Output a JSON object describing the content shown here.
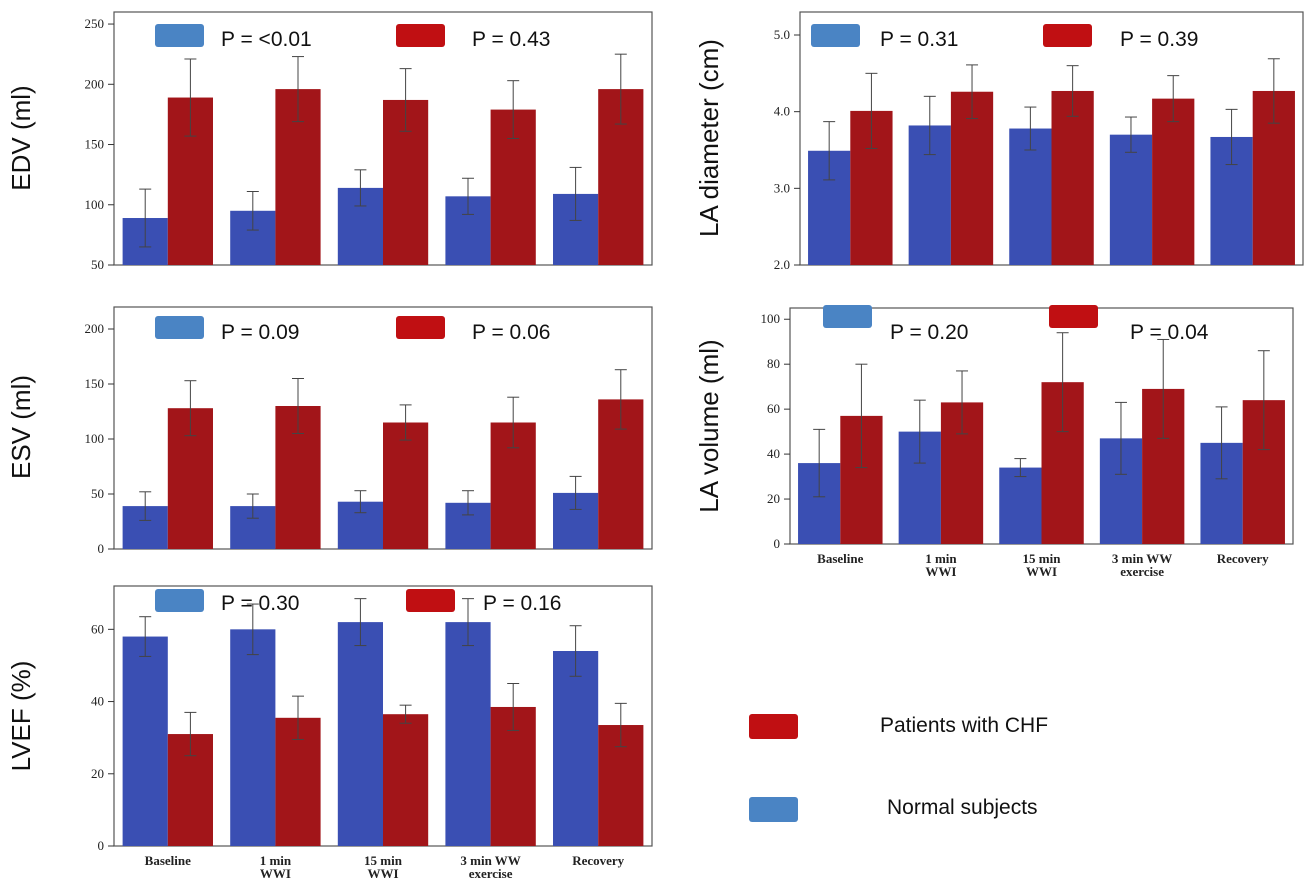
{
  "colors": {
    "normal_bar": "#3a4fb3",
    "chf_bar": "#a21519",
    "normal_swatch": "#4a84c4",
    "chf_swatch": "#c00f12"
  },
  "legend": {
    "chf_label": "Patients with CHF",
    "normal_label": "Normal subjects"
  },
  "chart_data": [
    {
      "type": "bar",
      "ylabel": "EDV (ml)",
      "ylim": [
        50,
        260
      ],
      "yticks": [
        50,
        100,
        150,
        200,
        250
      ],
      "yticklabels": [
        "50",
        "100",
        "150",
        "200",
        "250"
      ],
      "categories": [
        "",
        "",
        "",
        "",
        ""
      ],
      "p_normal": "P = <0.01",
      "p_chf": "P = 0.43",
      "series": [
        {
          "values": [
            89,
            95,
            114,
            107,
            109
          ],
          "err": [
            24,
            16,
            15,
            15,
            22
          ]
        },
        {
          "values": [
            189,
            196,
            187,
            179,
            196
          ],
          "err": [
            32,
            27,
            26,
            24,
            29
          ]
        }
      ]
    },
    {
      "type": "bar",
      "ylabel": "LA diameter (cm)",
      "ylim": [
        2.0,
        5.3
      ],
      "yticks": [
        2.0,
        3.0,
        4.0,
        5.0
      ],
      "yticklabels": [
        "2.0",
        "3.0",
        "4.0",
        "5.0"
      ],
      "categories": [
        "",
        "",
        "",
        "",
        ""
      ],
      "p_normal": "P = 0.31",
      "p_chf": "P = 0.39",
      "series": [
        {
          "values": [
            3.49,
            3.82,
            3.78,
            3.7,
            3.67
          ],
          "err": [
            0.38,
            0.38,
            0.28,
            0.23,
            0.36
          ]
        },
        {
          "values": [
            4.01,
            4.26,
            4.27,
            4.17,
            4.27
          ],
          "err": [
            0.49,
            0.35,
            0.33,
            0.3,
            0.42
          ]
        }
      ]
    },
    {
      "type": "bar",
      "ylabel": "ESV (ml)",
      "ylim": [
        0,
        220
      ],
      "yticks": [
        0,
        50,
        100,
        150,
        200
      ],
      "yticklabels": [
        "0",
        "50",
        "100",
        "150",
        "200"
      ],
      "categories": [
        "",
        "",
        "",
        "",
        ""
      ],
      "p_normal": "P = 0.09",
      "p_chf": "P = 0.06",
      "series": [
        {
          "values": [
            39,
            39,
            43,
            42,
            51
          ],
          "err": [
            13,
            11,
            10,
            11,
            15
          ]
        },
        {
          "values": [
            128,
            130,
            115,
            115,
            136
          ],
          "err": [
            25,
            25,
            16,
            23,
            27
          ]
        }
      ]
    },
    {
      "type": "bar",
      "ylabel": "LA volume (ml)",
      "ylim": [
        0,
        105
      ],
      "yticks": [
        0,
        20,
        40,
        60,
        80,
        100
      ],
      "yticklabels": [
        "0",
        "20",
        "40",
        "60",
        "80",
        "100"
      ],
      "categories": [
        "Baseline",
        "1 min\nWWI",
        "15 min\nWWI",
        "3 min WW\nexercise",
        "Recovery"
      ],
      "p_normal": "P = 0.20",
      "p_chf": "P = 0.04",
      "series": [
        {
          "values": [
            36,
            50,
            34,
            47,
            45
          ],
          "err": [
            15,
            14,
            4,
            16,
            16
          ]
        },
        {
          "values": [
            57,
            63,
            72,
            69,
            64
          ],
          "err": [
            23,
            14,
            22,
            22,
            22
          ]
        }
      ]
    },
    {
      "type": "bar",
      "ylabel": "LVEF (%)",
      "ylim": [
        0,
        72
      ],
      "yticks": [
        0,
        20,
        40,
        60
      ],
      "yticklabels": [
        "0",
        "20",
        "40",
        "60"
      ],
      "categories": [
        "Baseline",
        "1 min\nWWI",
        "15 min\nWWI",
        "3 min WW\nexercise",
        "Recovery"
      ],
      "p_normal": "P = 0.30",
      "p_chf": "P = 0.16",
      "series": [
        {
          "values": [
            58,
            60,
            62,
            62,
            54
          ],
          "err": [
            5.5,
            7,
            6.5,
            6.5,
            7
          ]
        },
        {
          "values": [
            31,
            35.5,
            36.5,
            38.5,
            33.5
          ],
          "err": [
            6,
            6,
            2.5,
            6.5,
            6
          ]
        }
      ]
    }
  ]
}
